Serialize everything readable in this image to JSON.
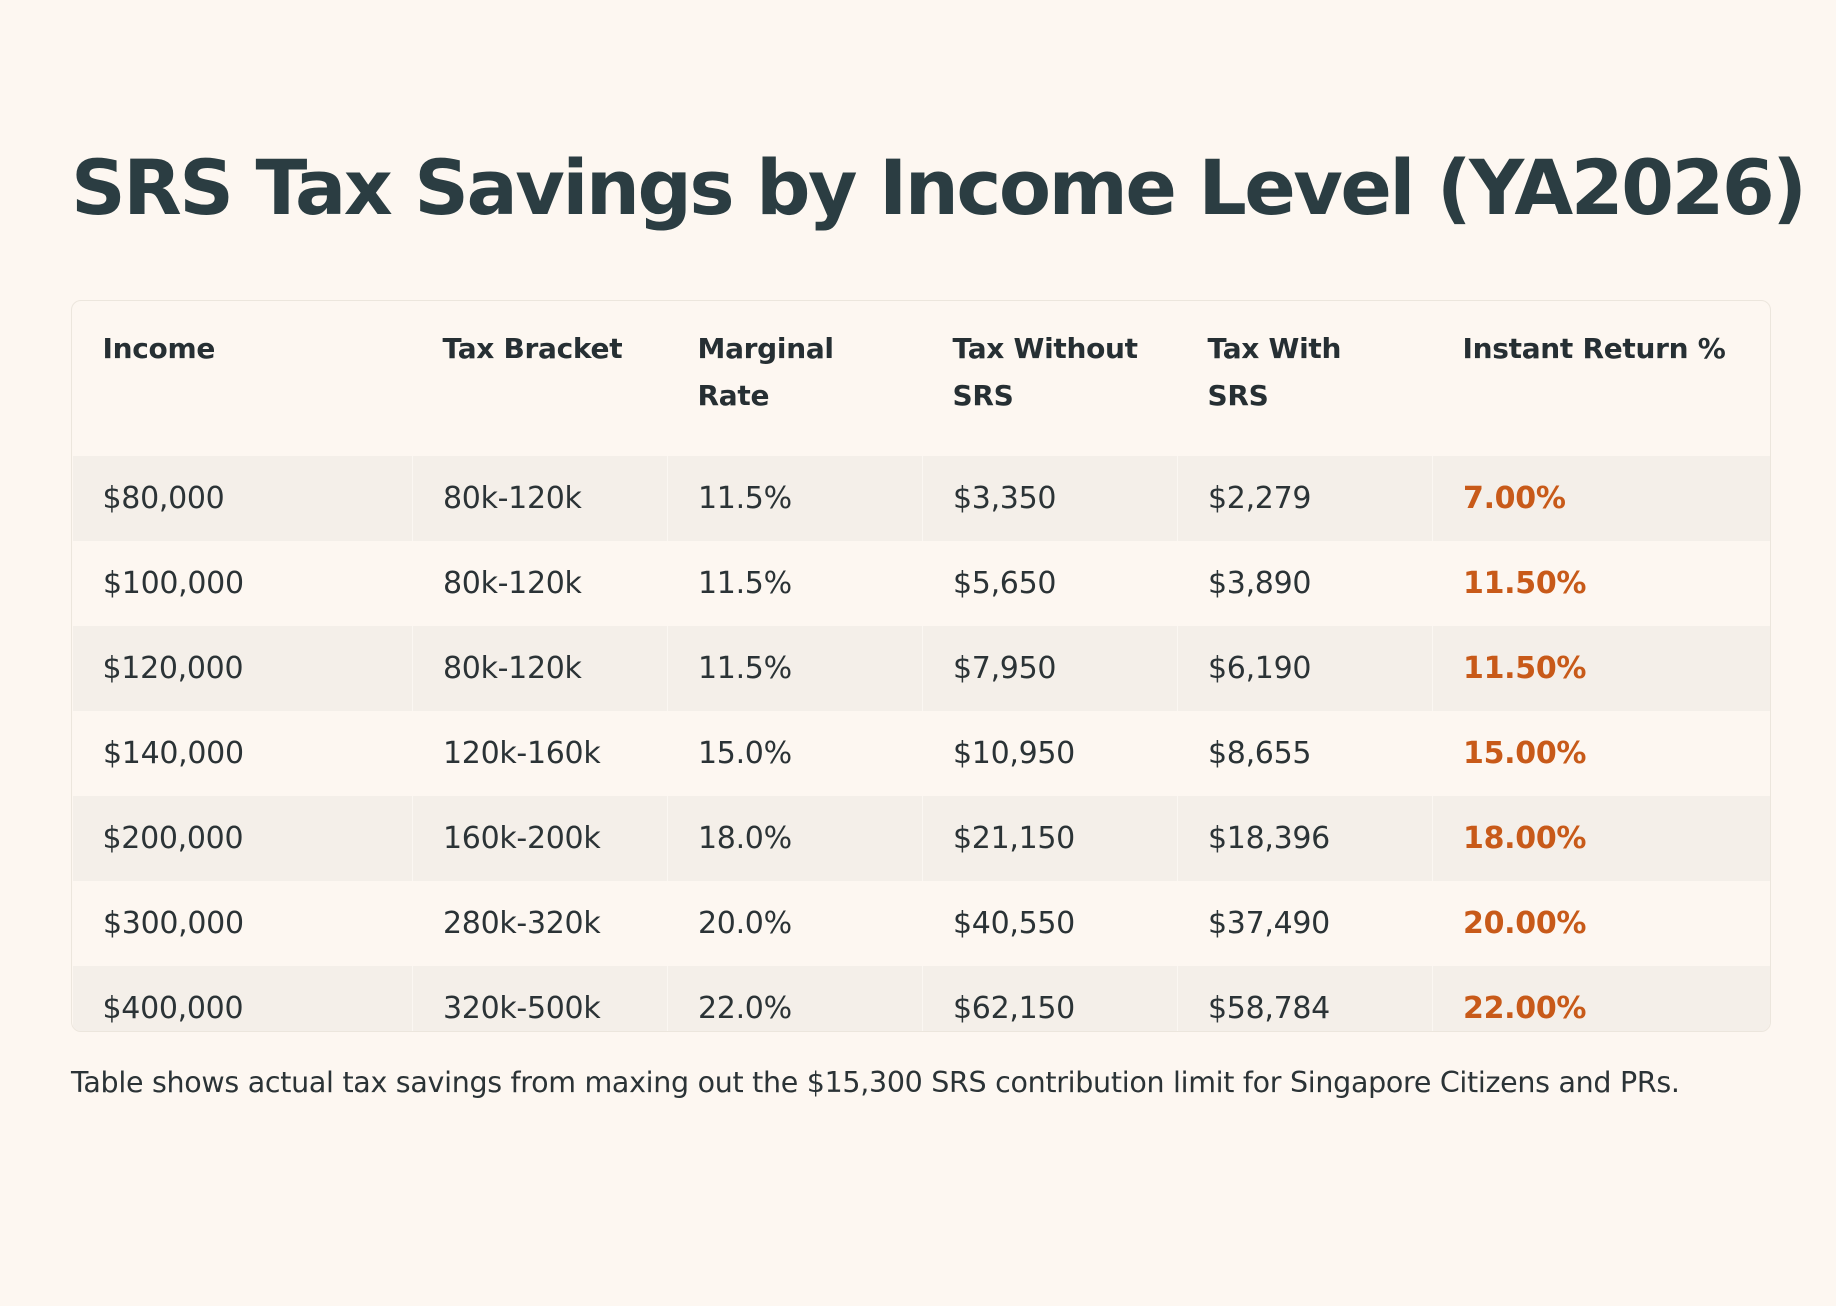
{
  "title": "SRS Tax Savings by Income Level (YA2026)",
  "table": {
    "headers": [
      "Income",
      "Tax Bracket",
      "Marginal Rate",
      "Tax Without SRS",
      "Tax With SRS",
      "Instant Return %"
    ],
    "rows": [
      [
        "$80,000",
        "80k-120k",
        "11.5%",
        "$3,350",
        "$2,279",
        "7.00%"
      ],
      [
        "$100,000",
        "80k-120k",
        "11.5%",
        "$5,650",
        "$3,890",
        "11.50%"
      ],
      [
        "$120,000",
        "80k-120k",
        "11.5%",
        "$7,950",
        "$6,190",
        "11.50%"
      ],
      [
        "$140,000",
        "120k-160k",
        "15.0%",
        "$10,950",
        "$8,655",
        "15.00%"
      ],
      [
        "$200,000",
        "160k-200k",
        "18.0%",
        "$21,150",
        "$18,396",
        "18.00%"
      ],
      [
        "$300,000",
        "280k-320k",
        "20.0%",
        "$40,550",
        "$37,490",
        "20.00%"
      ],
      [
        "$400,000",
        "320k-500k",
        "22.0%",
        "$62,150",
        "$58,784",
        "22.00%"
      ]
    ]
  },
  "footnote": "Table shows actual tax savings from maxing out the $15,300 SRS contribution limit for Singapore Citizens and PRs.",
  "colors": {
    "background": "#fdf7f1",
    "title": "#2b3d42",
    "accent_return": "#c85a19",
    "row_stripe": "#f4efe9"
  }
}
